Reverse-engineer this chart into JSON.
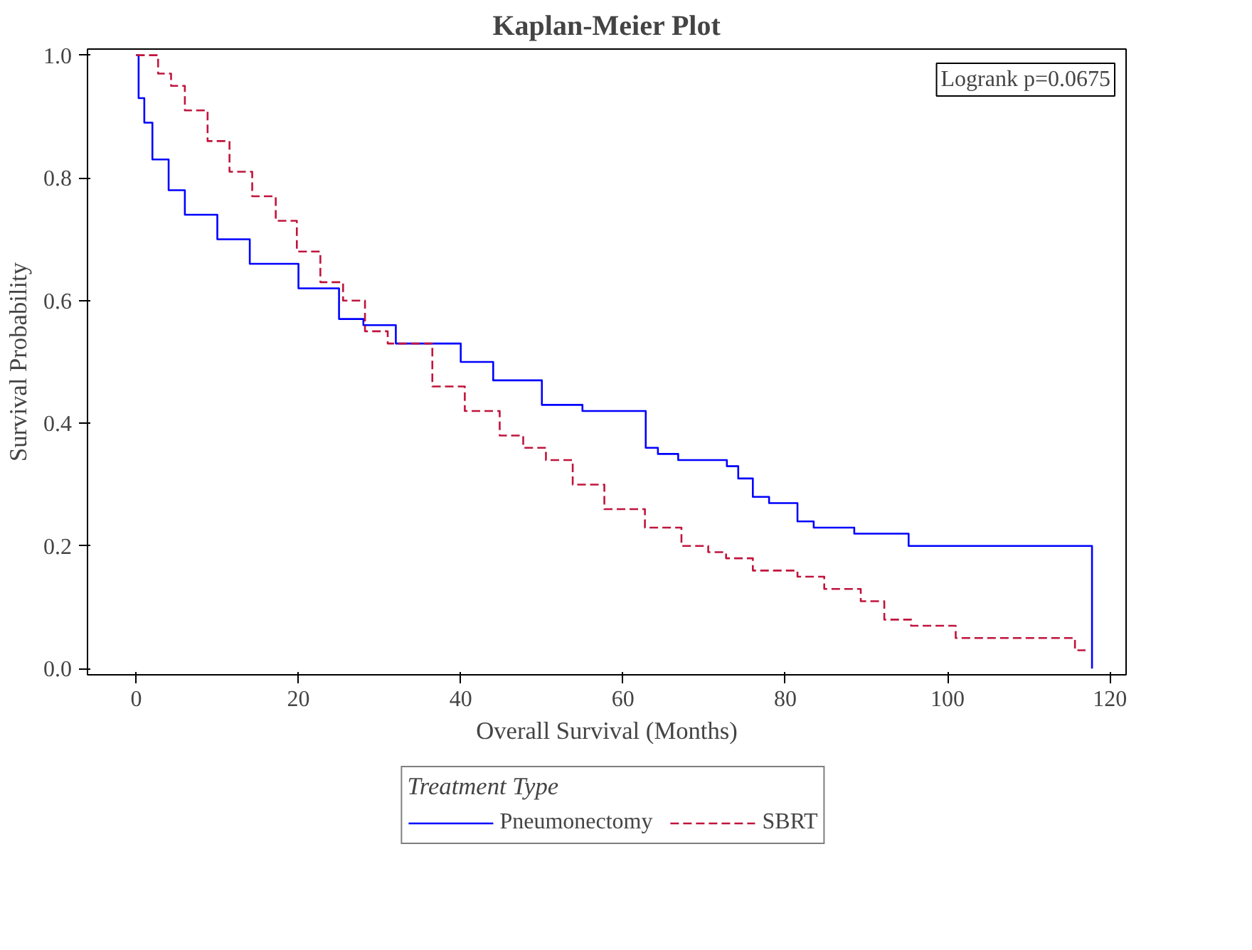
{
  "chart_data": {
    "type": "step",
    "title": "Kaplan-Meier Plot",
    "xlabel": "Overall Survival (Months)",
    "ylabel": "Survival Probability",
    "legend_title": "Treatment Type",
    "legend": "bottom",
    "grid": false,
    "xlim": [
      -6,
      122
    ],
    "ylim": [
      -0.01,
      1.01
    ],
    "xticks": [
      0,
      20,
      40,
      60,
      80,
      100,
      120
    ],
    "yticks": [
      {
        "value": 0,
        "label": "0.0"
      },
      0.2,
      0.4,
      0.6,
      0.8,
      {
        "value": 1,
        "label": "1.0"
      }
    ],
    "annotations": [
      "Logrank p=0.0675"
    ],
    "series": [
      {
        "name": "Pneumonectomy",
        "color": "#0000ff",
        "line_style": "solid",
        "x": [
          0,
          0.3,
          1,
          2,
          4,
          6,
          10,
          14,
          20,
          25,
          28,
          32,
          40,
          44,
          50,
          55,
          62.8,
          64.3,
          66.8,
          68.3,
          72.8,
          74.2,
          76,
          78,
          81.5,
          83.5,
          88.5,
          95.2,
          117.8,
          117.8
        ],
        "values": [
          1.0,
          0.93,
          0.89,
          0.83,
          0.78,
          0.74,
          0.7,
          0.66,
          0.62,
          0.57,
          0.56,
          0.53,
          0.5,
          0.47,
          0.43,
          0.42,
          0.36,
          0.35,
          0.34,
          0.34,
          0.33,
          0.31,
          0.28,
          0.27,
          0.24,
          0.23,
          0.22,
          0.2,
          0.2,
          0.0
        ]
      },
      {
        "name": "SBRT",
        "color": "#c0143c",
        "line_style": "dashed",
        "x": [
          0,
          2.7,
          4.3,
          6,
          8.8,
          11.5,
          14.3,
          17.2,
          19.8,
          22.7,
          25.5,
          28.2,
          31,
          36.5,
          40.5,
          44.8,
          47.7,
          50.5,
          53.8,
          57.7,
          62.7,
          67.2,
          70.5,
          72.7,
          76,
          81.5,
          84.8,
          89.3,
          92.2,
          95.5,
          101,
          115.7,
          117
        ],
        "values": [
          1.0,
          0.97,
          0.95,
          0.91,
          0.86,
          0.81,
          0.77,
          0.73,
          0.68,
          0.63,
          0.6,
          0.55,
          0.53,
          0.46,
          0.42,
          0.38,
          0.36,
          0.34,
          0.3,
          0.26,
          0.23,
          0.2,
          0.19,
          0.18,
          0.16,
          0.15,
          0.13,
          0.11,
          0.08,
          0.07,
          0.05,
          0.03,
          0.03
        ]
      }
    ]
  }
}
